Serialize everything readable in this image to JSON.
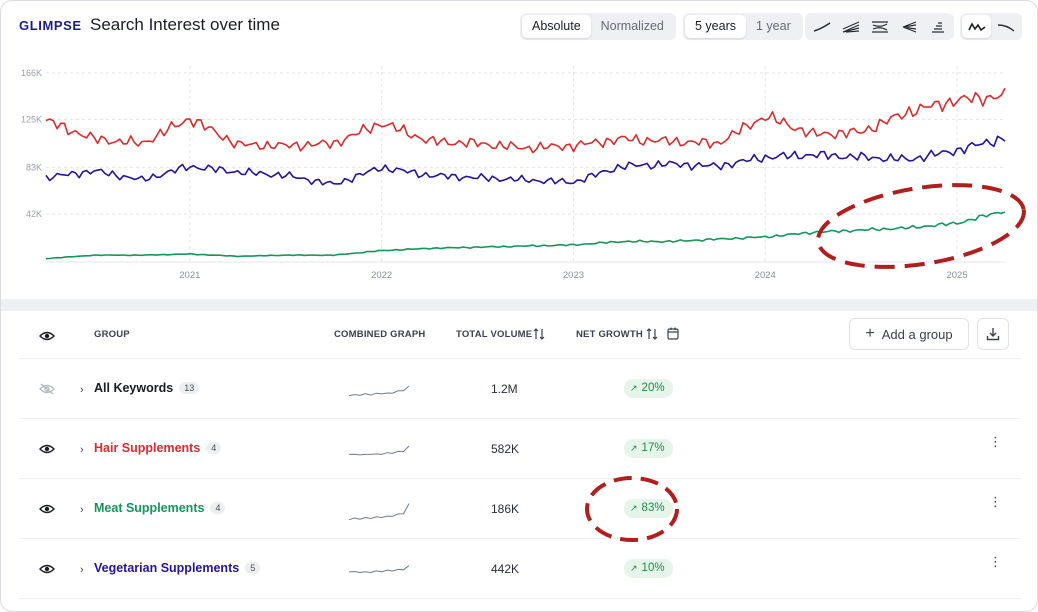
{
  "header": {
    "logo": "GLIMPSE",
    "title": "Search Interest over time",
    "scale_options": [
      "Absolute",
      "Normalized"
    ],
    "scale_selected": "Absolute",
    "range_options": [
      "5 years",
      "1 year"
    ],
    "range_selected": "5 years",
    "chart_style_icons": [
      "line-chart-icon",
      "stacked-area-icon",
      "stream-chart-icon",
      "fan-chart-icon",
      "bar-stack-icon"
    ],
    "smoothing_icons": [
      "raw-line-icon",
      "smooth-line-icon"
    ],
    "smoothing_selected": "raw-line-icon"
  },
  "chart_data": {
    "type": "line",
    "title": "Search Interest over time",
    "xlabel": "",
    "ylabel": "",
    "x_ticks": [
      "2021",
      "2022",
      "2023",
      "2024",
      "2025"
    ],
    "y_ticks": [
      "42K",
      "83K",
      "125K",
      "166K"
    ],
    "y_tick_values": [
      42000,
      83000,
      125000,
      166000
    ],
    "x_range": [
      "2020-04",
      "2025-04"
    ],
    "ylim": [
      0,
      172000
    ],
    "grid": true,
    "legend": "none",
    "x": [
      "2020-04",
      "2020-07",
      "2020-10",
      "2021-01",
      "2021-04",
      "2021-07",
      "2021-10",
      "2022-01",
      "2022-04",
      "2022-07",
      "2022-10",
      "2023-01",
      "2023-04",
      "2023-07",
      "2023-10",
      "2024-01",
      "2024-04",
      "2024-07",
      "2024-10",
      "2025-01",
      "2025-04"
    ],
    "series": [
      {
        "name": "Hair Supplements",
        "color": "#dd2a2a",
        "values": [
          124000,
          108000,
          104000,
          126000,
          103000,
          102000,
          104000,
          122000,
          106000,
          104000,
          100000,
          102000,
          108000,
          106000,
          104000,
          128000,
          112000,
          114000,
          132000,
          142000,
          146000
        ]
      },
      {
        "name": "Vegetarian Supplements",
        "color": "#23149e",
        "values": [
          74000,
          80000,
          72000,
          84000,
          79000,
          76000,
          68000,
          83000,
          76000,
          74000,
          72000,
          70000,
          84000,
          86000,
          84000,
          92000,
          94000,
          92000,
          90000,
          98000,
          109000
        ]
      },
      {
        "name": "Meat Supplements",
        "color": "#14965c",
        "values": [
          3000,
          6000,
          6000,
          7000,
          5000,
          6000,
          6000,
          10000,
          12000,
          13000,
          14000,
          15000,
          18000,
          18000,
          20000,
          22000,
          26000,
          28000,
          30000,
          34000,
          45000
        ]
      }
    ]
  },
  "table": {
    "headers": {
      "group": "GROUP",
      "combined_graph": "COMBINED GRAPH",
      "total_volume": "TOTAL VOLUME",
      "net_growth": "NET GROWTH"
    },
    "add_group_label": "Add a group",
    "rows": [
      {
        "name": "All Keywords",
        "count": "13",
        "volume": "1.2M",
        "growth": "20%",
        "color": "#1a1d26",
        "visible": false,
        "spark": [
          0.25,
          0.24,
          0.26,
          0.28,
          0.27,
          0.3,
          0.32,
          0.31,
          0.35,
          0.4,
          0.45,
          0.6
        ],
        "has_menu": false
      },
      {
        "name": "Hair Supplements",
        "count": "4",
        "volume": "582K",
        "growth": "17%",
        "color": "#dd2a2a",
        "visible": true,
        "spark": [
          0.3,
          0.26,
          0.28,
          0.25,
          0.3,
          0.27,
          0.3,
          0.32,
          0.34,
          0.38,
          0.42,
          0.6
        ],
        "has_menu": true
      },
      {
        "name": "Meat Supplements",
        "count": "4",
        "volume": "186K",
        "growth": "83%",
        "color": "#14965c",
        "visible": true,
        "spark": [
          0.08,
          0.1,
          0.1,
          0.12,
          0.13,
          0.15,
          0.17,
          0.18,
          0.22,
          0.27,
          0.33,
          0.7
        ],
        "has_menu": true
      },
      {
        "name": "Vegetarian Supplements",
        "count": "5",
        "volume": "442K",
        "growth": "10%",
        "color": "#23149e",
        "visible": true,
        "spark": [
          0.4,
          0.37,
          0.38,
          0.36,
          0.38,
          0.4,
          0.41,
          0.43,
          0.44,
          0.46,
          0.49,
          0.62
        ],
        "has_menu": true
      }
    ]
  },
  "annotations": {
    "color": "#b01e1e"
  }
}
